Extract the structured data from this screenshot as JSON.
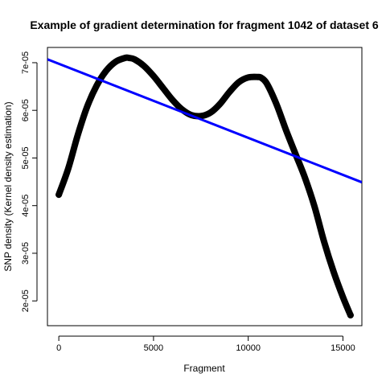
{
  "chart_data": {
    "type": "line",
    "title": "Example of gradient determination for fragment 1042 of dataset 6",
    "xlabel": "Fragment",
    "ylabel": "SNP density (Kernel density estimation)",
    "xlim": [
      -600,
      16000
    ],
    "ylim": [
      1.48e-05,
      7.32e-05
    ],
    "x_ticks": [
      0,
      5000,
      10000,
      15000
    ],
    "x_tick_labels": [
      "0",
      "5000",
      "10000",
      "15000"
    ],
    "y_ticks": [
      2e-05,
      3e-05,
      4e-05,
      5e-05,
      6e-05,
      7e-05
    ],
    "y_tick_labels": [
      "2e-05",
      "3e-05",
      "4e-05",
      "5e-05",
      "6e-05",
      "7e-05"
    ],
    "grid": false,
    "series": [
      {
        "color": "#000000",
        "style": "thick-points",
        "x": [
          0,
          500,
          1000,
          1500,
          2000,
          2500,
          3000,
          3500,
          3700,
          4000,
          4500,
          5000,
          5500,
          6000,
          6500,
          7000,
          7500,
          8000,
          8500,
          9000,
          9500,
          10000,
          10500,
          10700,
          11000,
          11500,
          12000,
          12500,
          13000,
          13500,
          14000,
          14500,
          15000,
          15400
        ],
        "y": [
          4.23e-05,
          4.78e-05,
          5.48e-05,
          6.08e-05,
          6.52e-05,
          6.83e-05,
          7.02e-05,
          7.1e-05,
          7.1e-05,
          7.07e-05,
          6.93e-05,
          6.72e-05,
          6.47e-05,
          6.22e-05,
          6.02e-05,
          5.9e-05,
          5.88e-05,
          5.95e-05,
          6.13e-05,
          6.38e-05,
          6.59e-05,
          6.69e-05,
          6.7e-05,
          6.68e-05,
          6.55e-05,
          6.12e-05,
          5.58e-05,
          5.08e-05,
          4.58e-05,
          3.98e-05,
          3.25e-05,
          2.62e-05,
          2.08e-05,
          1.7e-05
        ]
      },
      {
        "color": "#0000ff",
        "style": "line",
        "x": [
          -600,
          16000
        ],
        "y": [
          7.07e-05,
          4.49e-05
        ]
      }
    ]
  }
}
